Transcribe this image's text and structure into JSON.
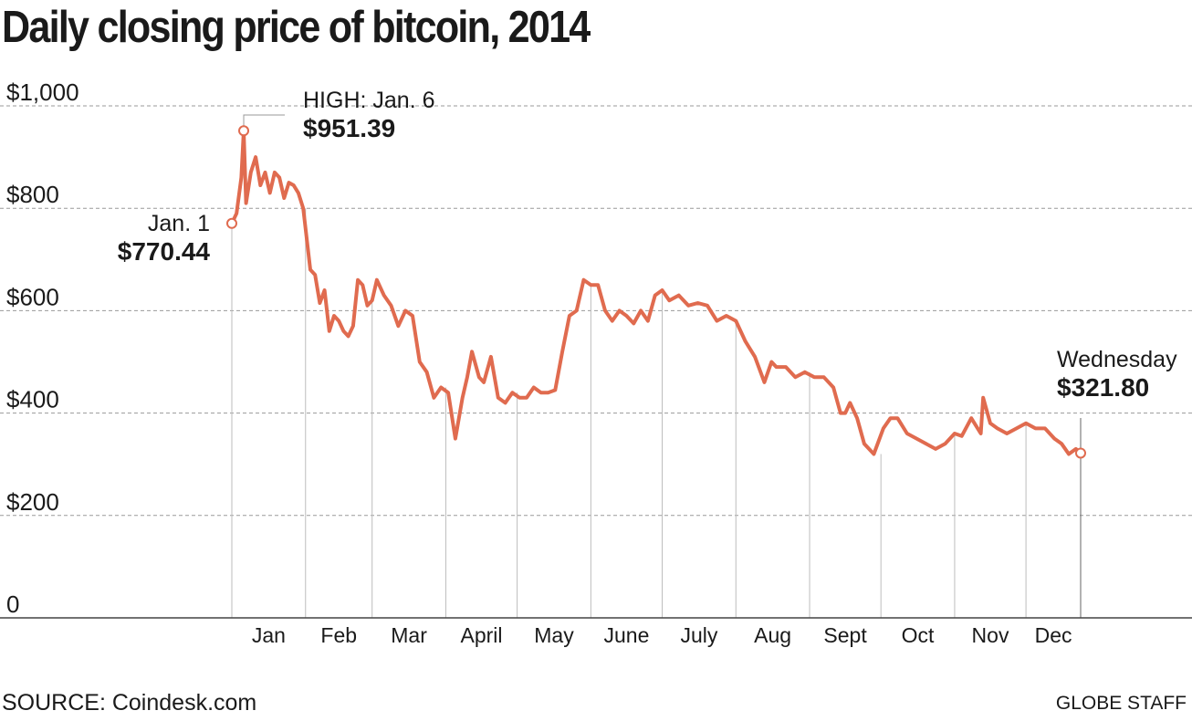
{
  "title": "Daily closing price of bitcoin, 2014",
  "source": "SOURCE: Coindesk.com",
  "credit": "GLOBE STAFF",
  "colors": {
    "line": "#e06b4f",
    "grid": "#9a9a9a",
    "axis": "#444444",
    "text": "#1a1a1a"
  },
  "annotations": {
    "start": {
      "label": "Jan. 1",
      "value": "$770.44"
    },
    "high": {
      "label": "HIGH: Jan. 6",
      "value": "$951.39"
    },
    "end": {
      "label": "Wednesday",
      "value": "$321.80"
    }
  },
  "chart_data": {
    "type": "line",
    "title": "Daily closing price of bitcoin, 2014",
    "xlabel": "",
    "ylabel": "",
    "ylim": [
      0,
      1000
    ],
    "grid": true,
    "y_ticks": [
      0,
      200,
      400,
      600,
      800,
      1000
    ],
    "y_tick_labels": [
      "0",
      "$200",
      "$400",
      "$600",
      "$800",
      "$1,000"
    ],
    "x_tick_labels": [
      "Jan",
      "Feb",
      "Mar",
      "April",
      "May",
      "June",
      "July",
      "Aug",
      "Sept",
      "Oct",
      "Nov",
      "Dec"
    ],
    "series": [
      {
        "values_note": "approximate daily closes read from chart",
        "x": [
          "2014-01-01",
          "2014-01-03",
          "2014-01-05",
          "2014-01-06",
          "2014-01-07",
          "2014-01-09",
          "2014-01-11",
          "2014-01-13",
          "2014-01-15",
          "2014-01-17",
          "2014-01-19",
          "2014-01-21",
          "2014-01-23",
          "2014-01-25",
          "2014-01-27",
          "2014-01-29",
          "2014-01-31",
          "2014-02-03",
          "2014-02-05",
          "2014-02-07",
          "2014-02-09",
          "2014-02-11",
          "2014-02-13",
          "2014-02-15",
          "2014-02-17",
          "2014-02-19",
          "2014-02-21",
          "2014-02-23",
          "2014-02-25",
          "2014-02-27",
          "2014-03-01",
          "2014-03-03",
          "2014-03-06",
          "2014-03-09",
          "2014-03-12",
          "2014-03-15",
          "2014-03-18",
          "2014-03-21",
          "2014-03-24",
          "2014-03-27",
          "2014-03-30",
          "2014-04-02",
          "2014-04-05",
          "2014-04-08",
          "2014-04-10",
          "2014-04-12",
          "2014-04-15",
          "2014-04-17",
          "2014-04-20",
          "2014-04-23",
          "2014-04-26",
          "2014-04-29",
          "2014-05-02",
          "2014-05-05",
          "2014-05-08",
          "2014-05-11",
          "2014-05-14",
          "2014-05-17",
          "2014-05-20",
          "2014-05-23",
          "2014-05-26",
          "2014-05-29",
          "2014-06-01",
          "2014-06-04",
          "2014-06-07",
          "2014-06-10",
          "2014-06-13",
          "2014-06-16",
          "2014-06-19",
          "2014-06-22",
          "2014-06-25",
          "2014-06-28",
          "2014-07-01",
          "2014-07-04",
          "2014-07-08",
          "2014-07-12",
          "2014-07-16",
          "2014-07-20",
          "2014-07-24",
          "2014-07-28",
          "2014-08-01",
          "2014-08-05",
          "2014-08-09",
          "2014-08-13",
          "2014-08-16",
          "2014-08-18",
          "2014-08-22",
          "2014-08-26",
          "2014-08-30",
          "2014-09-03",
          "2014-09-07",
          "2014-09-11",
          "2014-09-14",
          "2014-09-16",
          "2014-09-18",
          "2014-09-21",
          "2014-09-24",
          "2014-09-28",
          "2014-10-02",
          "2014-10-05",
          "2014-10-08",
          "2014-10-12",
          "2014-10-16",
          "2014-10-20",
          "2014-10-24",
          "2014-10-28",
          "2014-11-01",
          "2014-11-04",
          "2014-11-08",
          "2014-11-12",
          "2014-11-13",
          "2014-11-16",
          "2014-11-19",
          "2014-11-23",
          "2014-11-27",
          "2014-12-01",
          "2014-12-05",
          "2014-12-09",
          "2014-12-13",
          "2014-12-16",
          "2014-12-19",
          "2014-12-22",
          "2014-12-24"
        ],
        "values": [
          770.44,
          790,
          860,
          951.39,
          810,
          870,
          900,
          845,
          870,
          830,
          870,
          860,
          820,
          850,
          845,
          830,
          800,
          680,
          670,
          615,
          640,
          560,
          590,
          580,
          560,
          550,
          570,
          660,
          650,
          610,
          620,
          660,
          630,
          610,
          570,
          600,
          590,
          500,
          480,
          430,
          450,
          440,
          350,
          430,
          470,
          520,
          470,
          460,
          510,
          430,
          420,
          440,
          430,
          430,
          450,
          440,
          440,
          445,
          520,
          590,
          600,
          660,
          650,
          650,
          600,
          580,
          600,
          590,
          575,
          600,
          580,
          630,
          640,
          620,
          630,
          610,
          615,
          610,
          580,
          590,
          580,
          540,
          510,
          460,
          500,
          490,
          490,
          470,
          480,
          470,
          470,
          450,
          400,
          400,
          420,
          390,
          340,
          320,
          370,
          390,
          390,
          360,
          350,
          340,
          330,
          340,
          360,
          355,
          390,
          360,
          430,
          380,
          370,
          360,
          370,
          380,
          370,
          370,
          350,
          340,
          320,
          330,
          321.8
        ]
      }
    ]
  }
}
